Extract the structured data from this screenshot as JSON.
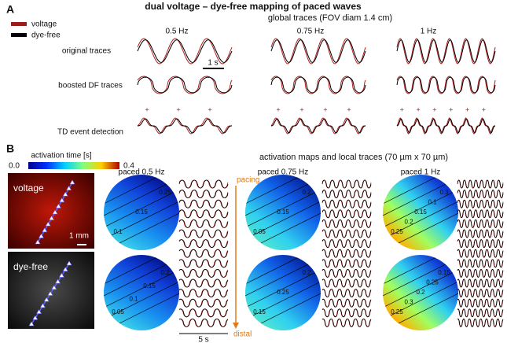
{
  "panel_a": {
    "label": "A",
    "title": "dual voltage – dye-free mapping of paced waves",
    "legend": [
      "voltage",
      "dye-free"
    ],
    "subtitle": "global traces (FOV diam 1.4 cm)",
    "columns": [
      "0.5 Hz",
      "0.75 Hz",
      "1 Hz"
    ],
    "rows": [
      "original traces",
      "boosted DF traces",
      "TD event detection"
    ],
    "scale_bar": "1 s"
  },
  "panel_b": {
    "label": "B",
    "colorbar": {
      "title": "activation time [s]",
      "min": "0.0",
      "max": "0.4"
    },
    "images": [
      "voltage",
      "dye-free"
    ],
    "scale_bar": "1 mm",
    "subtitle": "activation maps and local traces (70 µm x 70 µm)",
    "maps": [
      {
        "title": "paced 0.5 Hz",
        "voltage_labels": [
          "0.1",
          "0.15",
          "0.25"
        ],
        "dyefree_labels": [
          "0.05",
          "0.1",
          "0.15",
          "0.2"
        ]
      },
      {
        "title": "paced 0.75 Hz",
        "voltage_labels": [
          "0.05",
          "0.15",
          "0.2"
        ],
        "dyefree_labels": [
          "0.15",
          "0.25",
          "0.2"
        ]
      },
      {
        "title": "paced 1 Hz",
        "voltage_labels": [
          "0.25",
          "0.2",
          "0.15",
          "0.1",
          "0.3"
        ],
        "dyefree_labels": [
          "0.25",
          "0.3",
          "0.2",
          "0.25",
          "0.15"
        ]
      }
    ],
    "arrow": [
      "pacing",
      "distal"
    ],
    "time_bar": "5 s"
  }
}
